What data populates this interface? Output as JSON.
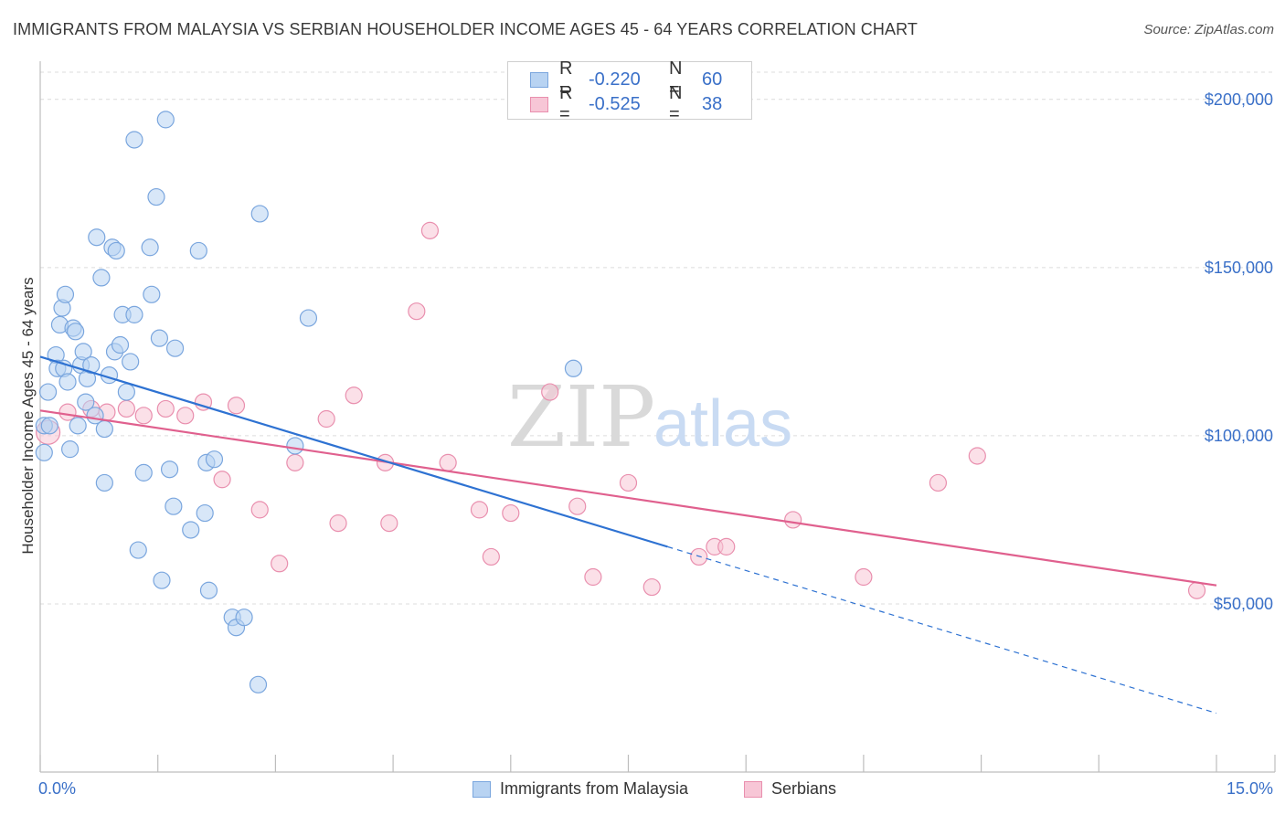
{
  "title": "IMMIGRANTS FROM MALAYSIA VS SERBIAN HOUSEHOLDER INCOME AGES 45 - 64 YEARS CORRELATION CHART",
  "source": "Source: ZipAtlas.com",
  "watermark": {
    "zip": "ZIP",
    "atlas": "atlas"
  },
  "colors": {
    "blue_fill": "#b8d3f2",
    "blue_stroke": "#7aa6de",
    "blue_line": "#2e72d2",
    "pink_fill": "#f7c6d6",
    "pink_stroke": "#e98fae",
    "pink_line": "#e0608e",
    "value_text": "#3a70c8"
  },
  "legend": {
    "rows": [
      {
        "r_label": "R =",
        "r_value": "-0.220",
        "n_label": "N =",
        "n_value": "60"
      },
      {
        "r_label": "R =",
        "r_value": "-0.525",
        "n_label": "N =",
        "n_value": "38"
      }
    ]
  },
  "bottom_legend": [
    "Immigrants from Malaysia",
    "Serbians"
  ],
  "chart_data": {
    "type": "scatter",
    "xlabel": "",
    "ylabel": "Householder Income Ages 45 - 64 years",
    "xlim": [
      0,
      15
    ],
    "ylim": [
      0,
      210000
    ],
    "x_tick_labels": [
      "0.0%",
      "15.0%"
    ],
    "y_ticks": [
      50000,
      100000,
      150000,
      200000
    ],
    "y_tick_labels": [
      "$50,000",
      "$100,000",
      "$150,000",
      "$200,000"
    ],
    "grid": true,
    "series": [
      {
        "name": "Immigrants from Malaysia",
        "trend": {
          "x": [
            0.0,
            8.0
          ],
          "y": [
            123500,
            67000
          ],
          "dashed_to": [
            15.0,
            17500
          ]
        },
        "points": [
          [
            0.05,
            103000
          ],
          [
            0.05,
            95000
          ],
          [
            0.1,
            113000
          ],
          [
            0.12,
            103000
          ],
          [
            0.2,
            124000
          ],
          [
            0.22,
            120000
          ],
          [
            0.25,
            133000
          ],
          [
            0.28,
            138000
          ],
          [
            0.3,
            120000
          ],
          [
            0.32,
            142000
          ],
          [
            0.35,
            116000
          ],
          [
            0.38,
            96000
          ],
          [
            0.42,
            132000
          ],
          [
            0.45,
            131000
          ],
          [
            0.48,
            103000
          ],
          [
            0.52,
            121000
          ],
          [
            0.55,
            125000
          ],
          [
            0.58,
            110000
          ],
          [
            0.6,
            117000
          ],
          [
            0.65,
            121000
          ],
          [
            0.7,
            106000
          ],
          [
            0.72,
            159000
          ],
          [
            0.78,
            147000
          ],
          [
            0.82,
            102000
          ],
          [
            0.82,
            86000
          ],
          [
            0.88,
            118000
          ],
          [
            0.92,
            156000
          ],
          [
            0.95,
            125000
          ],
          [
            0.97,
            155000
          ],
          [
            1.02,
            127000
          ],
          [
            1.05,
            136000
          ],
          [
            1.1,
            113000
          ],
          [
            1.15,
            122000
          ],
          [
            1.2,
            188000
          ],
          [
            1.2,
            136000
          ],
          [
            1.25,
            66000
          ],
          [
            1.32,
            89000
          ],
          [
            1.4,
            156000
          ],
          [
            1.42,
            142000
          ],
          [
            1.48,
            171000
          ],
          [
            1.52,
            129000
          ],
          [
            1.55,
            57000
          ],
          [
            1.6,
            194000
          ],
          [
            1.65,
            90000
          ],
          [
            1.7,
            79000
          ],
          [
            1.72,
            126000
          ],
          [
            1.92,
            72000
          ],
          [
            2.02,
            155000
          ],
          [
            2.1,
            77000
          ],
          [
            2.12,
            92000
          ],
          [
            2.15,
            54000
          ],
          [
            2.22,
            93000
          ],
          [
            2.45,
            46000
          ],
          [
            2.5,
            43000
          ],
          [
            2.6,
            46000
          ],
          [
            2.78,
            26000
          ],
          [
            2.8,
            166000
          ],
          [
            3.25,
            97000
          ],
          [
            3.42,
            135000
          ],
          [
            6.8,
            120000
          ]
        ]
      },
      {
        "name": "Serbians",
        "trend": {
          "x": [
            0.0,
            15.0
          ],
          "y": [
            107500,
            55500
          ]
        },
        "points": [
          [
            0.1,
            101000
          ],
          [
            0.35,
            107000
          ],
          [
            0.65,
            108000
          ],
          [
            0.85,
            107000
          ],
          [
            1.1,
            108000
          ],
          [
            1.32,
            106000
          ],
          [
            1.6,
            108000
          ],
          [
            1.85,
            106000
          ],
          [
            2.08,
            110000
          ],
          [
            2.32,
            87000
          ],
          [
            2.5,
            109000
          ],
          [
            2.8,
            78000
          ],
          [
            3.05,
            62000
          ],
          [
            3.25,
            92000
          ],
          [
            3.65,
            105000
          ],
          [
            3.8,
            74000
          ],
          [
            4.0,
            112000
          ],
          [
            4.4,
            92000
          ],
          [
            4.45,
            74000
          ],
          [
            4.8,
            137000
          ],
          [
            4.97,
            161000
          ],
          [
            5.2,
            92000
          ],
          [
            5.6,
            78000
          ],
          [
            5.75,
            64000
          ],
          [
            6.0,
            77000
          ],
          [
            6.5,
            113000
          ],
          [
            6.85,
            79000
          ],
          [
            7.05,
            58000
          ],
          [
            7.5,
            86000
          ],
          [
            7.8,
            55000
          ],
          [
            8.4,
            64000
          ],
          [
            8.6,
            67000
          ],
          [
            8.75,
            67000
          ],
          [
            9.6,
            75000
          ],
          [
            10.5,
            58000
          ],
          [
            11.45,
            86000
          ],
          [
            11.95,
            94000
          ],
          [
            14.75,
            54000
          ]
        ]
      }
    ]
  }
}
